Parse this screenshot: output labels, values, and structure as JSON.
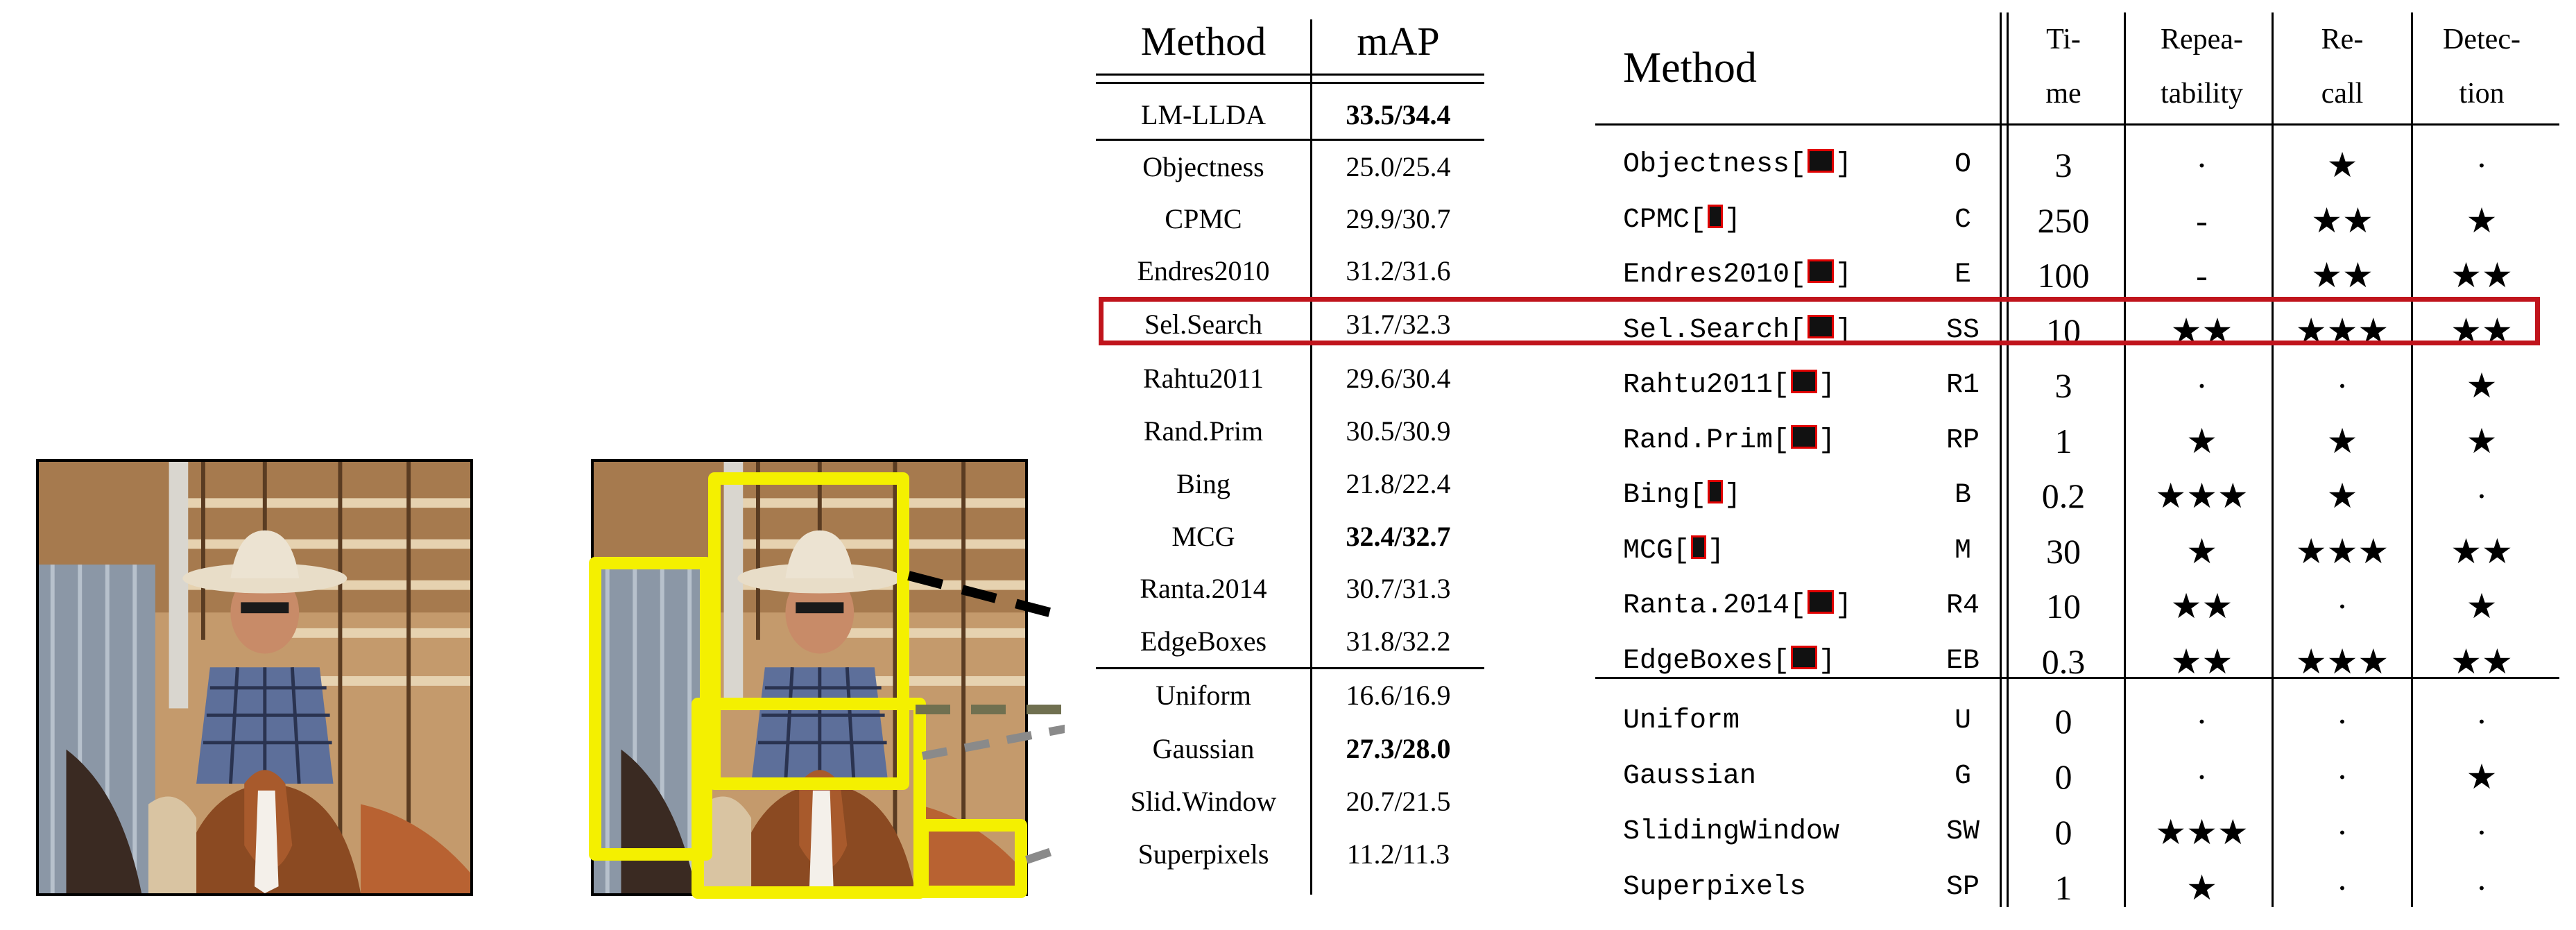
{
  "left_table": {
    "header": {
      "method": "Method",
      "map": "mAP"
    },
    "rows": [
      {
        "method": "LM-LLDA",
        "map": "33.5/34.4",
        "bold": true
      },
      {
        "method": "Objectness",
        "map": "25.0/25.4",
        "bold": false
      },
      {
        "method": "CPMC",
        "map": "29.9/30.7",
        "bold": false
      },
      {
        "method": "Endres2010",
        "map": "31.2/31.6",
        "bold": false
      },
      {
        "method": "Sel.Search",
        "map": "31.7/32.3",
        "bold": false
      },
      {
        "method": "Rahtu2011",
        "map": "29.6/30.4",
        "bold": false
      },
      {
        "method": "Rand.Prim",
        "map": "30.5/30.9",
        "bold": false
      },
      {
        "method": "Bing",
        "map": "21.8/22.4",
        "bold": false
      },
      {
        "method": "MCG",
        "map": "32.4/32.7",
        "bold": true
      },
      {
        "method": "Ranta.2014",
        "map": "30.7/31.3",
        "bold": false
      },
      {
        "method": "EdgeBoxes",
        "map": "31.8/32.2",
        "bold": false
      },
      {
        "method": "Uniform",
        "map": "16.6/16.9",
        "bold": false
      },
      {
        "method": "Gaussian",
        "map": "27.3/28.0",
        "bold": true
      },
      {
        "method": "Slid.Window",
        "map": "20.7/21.5",
        "bold": false
      },
      {
        "method": "Superpixels",
        "map": "11.2/11.3",
        "bold": false
      }
    ]
  },
  "right_table": {
    "header": {
      "method": "Method",
      "time_1": "Ti-",
      "time_2": "me",
      "rep_1": "Repea-",
      "rep_2": "tability",
      "rec_1": "Re-",
      "rec_2": "call",
      "det_1": "Detec-",
      "det_2": "tion"
    },
    "rows": [
      {
        "name": "Objectness[",
        "abbr": "O",
        "time": "3",
        "rep": "·",
        "rec": "★",
        "det": "·"
      },
      {
        "name": "CPMC[",
        "abbr": "C",
        "time": "250",
        "rep": "-",
        "rec": "★★",
        "det": "★"
      },
      {
        "name": "Endres2010[",
        "abbr": "E",
        "time": "100",
        "rep": "-",
        "rec": "★★",
        "det": "★★"
      },
      {
        "name": "Sel.Search[",
        "abbr": "SS",
        "time": "10",
        "rep": "★★",
        "rec": "★★★",
        "det": "★★"
      },
      {
        "name": "Rahtu2011[",
        "abbr": "R1",
        "time": "3",
        "rep": "·",
        "rec": "·",
        "det": "★"
      },
      {
        "name": "Rand.Prim[",
        "abbr": "RP",
        "time": "1",
        "rep": "★",
        "rec": "★",
        "det": "★"
      },
      {
        "name": "Bing[",
        "abbr": "B",
        "time": "0.2",
        "rep": "★★★",
        "rec": "★",
        "det": "·"
      },
      {
        "name": "MCG[",
        "abbr": "M",
        "time": "30",
        "rep": "★",
        "rec": "★★★",
        "det": "★★"
      },
      {
        "name": "Ranta.2014[",
        "abbr": "R4",
        "time": "10",
        "rep": "★★",
        "rec": "·",
        "det": "★"
      },
      {
        "name": "EdgeBoxes[",
        "abbr": "EB",
        "time": "0.3",
        "rep": "★★",
        "rec": "★★★",
        "det": "★★"
      },
      {
        "name": "Uniform",
        "abbr": "U",
        "time": "0",
        "rep": "·",
        "rec": "·",
        "det": "·"
      },
      {
        "name": "Gaussian",
        "abbr": "G",
        "time": "0",
        "rep": "·",
        "rec": "·",
        "det": "★"
      },
      {
        "name": "SlidingWindow",
        "abbr": "SW",
        "time": "0",
        "rep": "★★★",
        "rec": "·",
        "det": "·"
      },
      {
        "name": "Superpixels",
        "abbr": "SP",
        "time": "1",
        "rep": "★",
        "rec": "·",
        "det": "·"
      }
    ],
    "ref_close": "]"
  },
  "colors": {
    "highlight_box": "#c0141c",
    "proposal_box": "#f4f000",
    "ref_marker": "#e00000"
  }
}
